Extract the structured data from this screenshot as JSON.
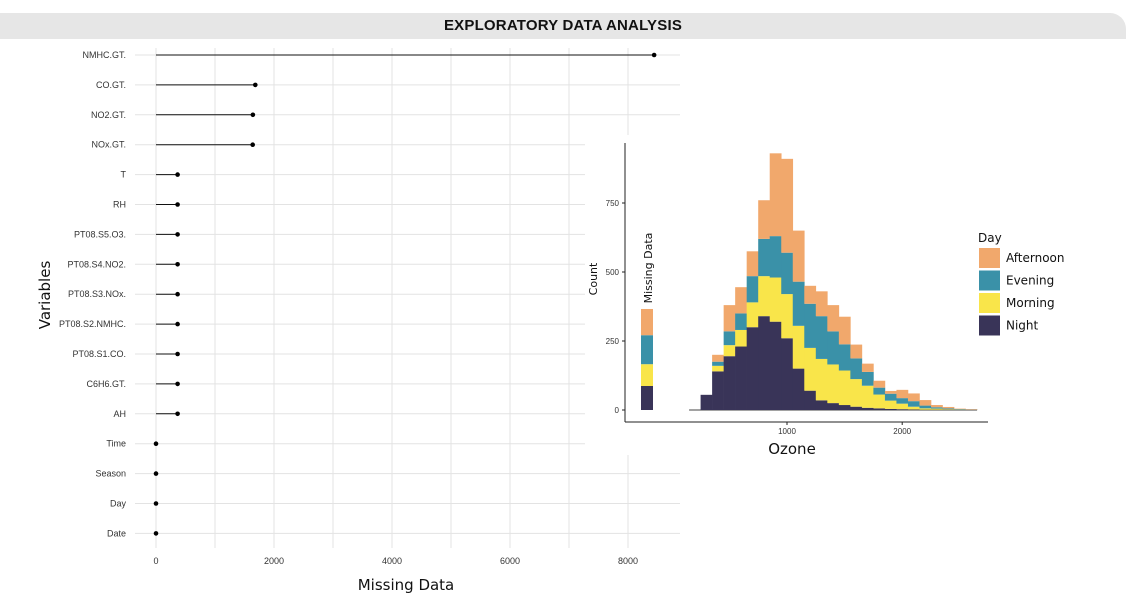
{
  "title": "EXPLORATORY DATA ANALYSIS",
  "colors": {
    "afternoon": "#f1a86c",
    "evening": "#3a91a8",
    "morning": "#f9e54a",
    "night": "#393458",
    "grid": "#e3e3e3",
    "banner": "#e6e6e6"
  },
  "chart_data": [
    {
      "type": "lollipop",
      "xlabel": "Missing Data",
      "ylabel": "Variables",
      "xlim": [
        0,
        8000
      ],
      "xticks": [
        "0",
        "2000",
        "4000",
        "6000",
        "8000"
      ],
      "xtick_values": [
        0,
        2000,
        4000,
        6000,
        8000
      ],
      "categories": [
        "NMHC.GT.",
        "CO.GT.",
        "NO2.GT.",
        "NOx.GT.",
        "T",
        "RH",
        "PT08.S5.O3.",
        "PT08.S4.NO2.",
        "PT08.S3.NOx.",
        "PT08.S2.NMHC.",
        "PT08.S1.CO.",
        "C6H6.GT.",
        "AH",
        "Time",
        "Season",
        "Day",
        "Date"
      ],
      "values": [
        8443,
        1683,
        1642,
        1639,
        366,
        366,
        366,
        366,
        366,
        366,
        366,
        366,
        366,
        0,
        0,
        0,
        0
      ],
      "grid": true
    },
    {
      "type": "histogram",
      "stacked": true,
      "xlabel": "Ozone",
      "ylabel": "Count",
      "missing_label": "Missing Data",
      "xticks": [
        "1000",
        "2000"
      ],
      "xtick_values": [
        1000,
        2000
      ],
      "yticks": [
        "0",
        "250",
        "500",
        "750"
      ],
      "ytick_values": [
        0,
        250,
        500,
        750
      ],
      "legend_title": "Day",
      "legend_position": "right",
      "grid": false,
      "series_order": [
        "Night",
        "Morning",
        "Evening",
        "Afternoon"
      ],
      "legend_entries": [
        {
          "name": "Afternoon",
          "key": "afternoon"
        },
        {
          "name": "Evening",
          "key": "evening"
        },
        {
          "name": "Morning",
          "key": "morning"
        },
        {
          "name": "Night",
          "key": "night"
        }
      ],
      "missing_bar": {
        "Night": 87,
        "Morning": 79,
        "Evening": 105,
        "Afternoon": 95
      },
      "bin_width": 100,
      "bins_start": [
        250,
        350,
        450,
        550,
        650,
        750,
        850,
        950,
        1050,
        1150,
        1250,
        1350,
        1450,
        1550,
        1650,
        1750,
        1850,
        1950,
        2050,
        2150,
        2250,
        2350,
        2450,
        2550
      ],
      "series": [
        {
          "name": "Night",
          "values": [
            55,
            140,
            195,
            230,
            300,
            340,
            320,
            260,
            150,
            70,
            35,
            25,
            18,
            12,
            8,
            6,
            4,
            3,
            2,
            1,
            1,
            1,
            0,
            0
          ]
        },
        {
          "name": "Morning",
          "values": [
            0,
            20,
            40,
            60,
            90,
            145,
            160,
            160,
            155,
            155,
            150,
            140,
            125,
            100,
            80,
            50,
            30,
            20,
            10,
            5,
            4,
            2,
            1,
            0
          ]
        },
        {
          "name": "Evening",
          "values": [
            0,
            15,
            50,
            60,
            95,
            135,
            150,
            150,
            160,
            160,
            155,
            120,
            95,
            75,
            50,
            25,
            25,
            20,
            20,
            10,
            5,
            3,
            2,
            1
          ]
        },
        {
          "name": "Afternoon",
          "values": [
            0,
            25,
            95,
            95,
            90,
            140,
            300,
            340,
            185,
            65,
            90,
            95,
            100,
            50,
            30,
            25,
            10,
            30,
            28,
            20,
            8,
            5,
            2,
            2
          ]
        }
      ],
      "trailing_line_x": [
        150,
        2650
      ]
    }
  ]
}
